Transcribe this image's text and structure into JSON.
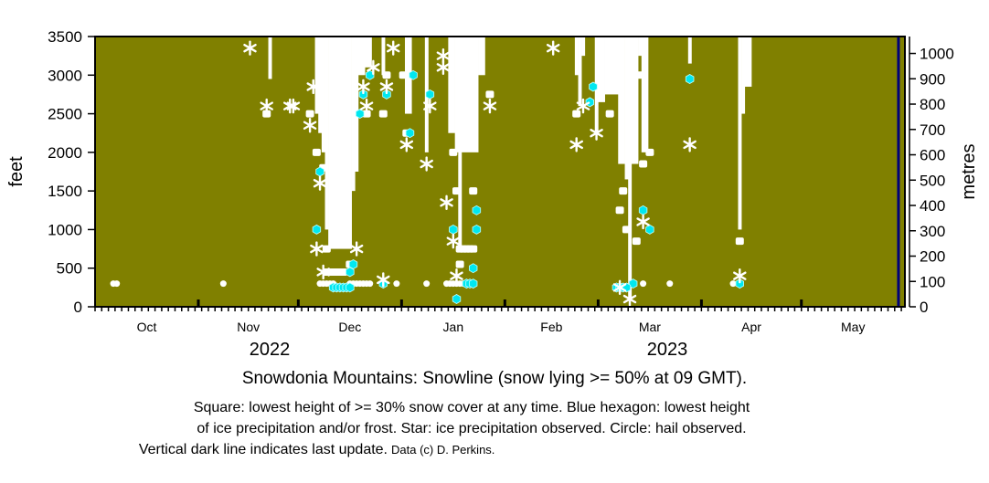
{
  "chart_data": {
    "type": "scatter",
    "title": "Snowdonia Mountains: Snowline (snow lying >= 50% at 09 GMT).",
    "caption_lines": [
      "Square: lowest height of >= 30% snow cover at any time. Blue hexagon: lowest height",
      "of ice precipitation and/or frost. Star: ice precipitation observed. Circle: hail observed.",
      "Vertical dark line indicates last update."
    ],
    "credit": "Data (c) D. Perkins.",
    "ylabel": "feet",
    "y2label": "metres",
    "ylim": [
      0,
      3500
    ],
    "yticks": [
      0,
      500,
      1000,
      1500,
      2000,
      2500,
      3000,
      3500
    ],
    "y2lim": [
      0,
      1066.8
    ],
    "y2ticks": [
      0,
      100,
      200,
      300,
      400,
      500,
      600,
      700,
      800,
      900,
      1000
    ],
    "xlim": [
      "2022-10-01",
      "2023-06-01"
    ],
    "months": [
      {
        "label": "Oct",
        "start": "2022-10-01",
        "days": 31
      },
      {
        "label": "Nov",
        "start": "2022-11-01",
        "days": 30
      },
      {
        "label": "Dec",
        "start": "2022-12-01",
        "days": 31
      },
      {
        "label": "Jan",
        "start": "2023-01-01",
        "days": 31
      },
      {
        "label": "Feb",
        "start": "2023-02-01",
        "days": 28
      },
      {
        "label": "Mar",
        "start": "2023-03-01",
        "days": 31
      },
      {
        "label": "Apr",
        "start": "2023-04-01",
        "days": 30
      },
      {
        "label": "May",
        "start": "2023-05-01",
        "days": 31
      }
    ],
    "years": [
      "2022",
      "2023"
    ],
    "last_update": "2023-05-30",
    "colors": {
      "background": "#808000",
      "snow": "#ffffff",
      "hexagon": "#00e8f0",
      "last_update": "#00007a"
    },
    "snowline_feet": [
      {
        "from": "2022-11-22",
        "to": "2022-11-22",
        "ft": 2950
      },
      {
        "from": "2022-12-06",
        "to": "2022-12-06",
        "ft": 2500
      },
      {
        "from": "2022-12-07",
        "to": "2022-12-07",
        "ft": 2250
      },
      {
        "from": "2022-12-08",
        "to": "2022-12-08",
        "ft": 2000
      },
      {
        "from": "2022-12-09",
        "to": "2022-12-09",
        "ft": 1000
      },
      {
        "from": "2022-12-10",
        "to": "2022-12-16",
        "ft": 750
      },
      {
        "from": "2022-12-17",
        "to": "2022-12-17",
        "ft": 1500
      },
      {
        "from": "2022-12-18",
        "to": "2022-12-18",
        "ft": 1750
      },
      {
        "from": "2022-12-19",
        "to": "2022-12-20",
        "ft": 3000
      },
      {
        "from": "2022-12-21",
        "to": "2022-12-22",
        "ft": 3100
      },
      {
        "from": "2022-12-26",
        "to": "2022-12-26",
        "ft": 3000
      },
      {
        "from": "2023-01-02",
        "to": "2023-01-03",
        "ft": 2500
      },
      {
        "from": "2023-01-08",
        "to": "2023-01-08",
        "ft": 2000
      },
      {
        "from": "2023-01-15",
        "to": "2023-01-16",
        "ft": 2250
      },
      {
        "from": "2023-01-17",
        "to": "2023-01-17",
        "ft": 2000
      },
      {
        "from": "2023-01-18",
        "to": "2023-01-18",
        "ft": 750
      },
      {
        "from": "2023-01-19",
        "to": "2023-01-23",
        "ft": 2000
      },
      {
        "from": "2023-01-24",
        "to": "2023-01-25",
        "ft": 3000
      },
      {
        "from": "2023-02-22",
        "to": "2023-02-22",
        "ft": 3000
      },
      {
        "from": "2023-02-23",
        "to": "2023-02-23",
        "ft": 2600
      },
      {
        "from": "2023-02-24",
        "to": "2023-02-24",
        "ft": 3250
      },
      {
        "from": "2023-02-28",
        "to": "2023-02-28",
        "ft": 2250
      },
      {
        "from": "2023-03-01",
        "to": "2023-03-02",
        "ft": 2650
      },
      {
        "from": "2023-03-03",
        "to": "2023-03-06",
        "ft": 2750
      },
      {
        "from": "2023-03-07",
        "to": "2023-03-08",
        "ft": 1850
      },
      {
        "from": "2023-03-09",
        "to": "2023-03-09",
        "ft": 1650
      },
      {
        "from": "2023-03-10",
        "to": "2023-03-10",
        "ft": 100
      },
      {
        "from": "2023-03-11",
        "to": "2023-03-12",
        "ft": 1850
      },
      {
        "from": "2023-03-13",
        "to": "2023-03-13",
        "ft": 3250
      },
      {
        "from": "2023-03-14",
        "to": "2023-03-15",
        "ft": 2000
      },
      {
        "from": "2023-03-28",
        "to": "2023-03-28",
        "ft": 3150
      },
      {
        "from": "2023-04-12",
        "to": "2023-04-12",
        "ft": 1000
      },
      {
        "from": "2023-04-13",
        "to": "2023-04-13",
        "ft": 2500
      },
      {
        "from": "2023-04-14",
        "to": "2023-04-15",
        "ft": 2850
      }
    ],
    "squares": [
      [
        "2022-11-21",
        2500
      ],
      [
        "2022-12-04",
        2500
      ],
      [
        "2022-12-06",
        2000
      ],
      [
        "2022-12-08",
        1800
      ],
      [
        "2022-12-09",
        750
      ],
      [
        "2022-12-09",
        450
      ],
      [
        "2022-12-10",
        450
      ],
      [
        "2022-12-11",
        450
      ],
      [
        "2022-12-12",
        450
      ],
      [
        "2022-12-13",
        450
      ],
      [
        "2022-12-14",
        450
      ],
      [
        "2022-12-16",
        550
      ],
      [
        "2022-12-21",
        2500
      ],
      [
        "2022-12-26",
        2500
      ],
      [
        "2022-12-27",
        3000
      ],
      [
        "2023-01-01",
        3000
      ],
      [
        "2023-01-02",
        2250
      ],
      [
        "2023-01-27",
        2750
      ],
      [
        "2023-01-16",
        2000
      ],
      [
        "2023-01-17",
        1500
      ],
      [
        "2023-01-22",
        1500
      ],
      [
        "2023-01-18",
        750
      ],
      [
        "2023-01-19",
        750
      ],
      [
        "2023-01-20",
        750
      ],
      [
        "2023-01-21",
        750
      ],
      [
        "2023-01-22",
        750
      ],
      [
        "2023-01-18",
        550
      ],
      [
        "2023-02-22",
        2500
      ],
      [
        "2023-03-04",
        2500
      ],
      [
        "2023-03-13",
        3000
      ],
      [
        "2023-03-16",
        2000
      ],
      [
        "2023-03-14",
        1850
      ],
      [
        "2023-03-08",
        1500
      ],
      [
        "2023-03-07",
        1250
      ],
      [
        "2023-03-09",
        1000
      ],
      [
        "2023-03-12",
        850
      ],
      [
        "2023-04-12",
        850
      ]
    ],
    "hexagons": [
      [
        "2022-12-07",
        1750
      ],
      [
        "2022-12-06",
        1000
      ],
      [
        "2022-12-17",
        550
      ],
      [
        "2022-12-16",
        450
      ],
      [
        "2022-12-11",
        250
      ],
      [
        "2022-12-12",
        250
      ],
      [
        "2022-12-13",
        250
      ],
      [
        "2022-12-14",
        250
      ],
      [
        "2022-12-15",
        250
      ],
      [
        "2022-12-16",
        250
      ],
      [
        "2022-12-26",
        300
      ],
      [
        "2022-12-22",
        3000
      ],
      [
        "2023-01-04",
        3000
      ],
      [
        "2022-12-20",
        2750
      ],
      [
        "2022-12-19",
        2500
      ],
      [
        "2022-12-27",
        2750
      ],
      [
        "2023-01-03",
        2250
      ],
      [
        "2023-01-09",
        2750
      ],
      [
        "2023-01-23",
        1250
      ],
      [
        "2023-01-16",
        1000
      ],
      [
        "2023-01-23",
        1000
      ],
      [
        "2023-01-22",
        500
      ],
      [
        "2023-01-20",
        300
      ],
      [
        "2023-01-21",
        300
      ],
      [
        "2023-01-22",
        300
      ],
      [
        "2023-01-17",
        100
      ],
      [
        "2023-02-27",
        2850
      ],
      [
        "2023-02-26",
        2650
      ],
      [
        "2023-03-14",
        1250
      ],
      [
        "2023-03-16",
        1000
      ],
      [
        "2023-03-28",
        2950
      ],
      [
        "2023-04-12",
        300
      ],
      [
        "2023-03-11",
        300
      ],
      [
        "2023-03-06",
        250
      ],
      [
        "2023-03-07",
        250
      ],
      [
        "2023-03-08",
        250
      ],
      [
        "2023-03-09",
        250
      ]
    ],
    "stars": [
      [
        "2022-11-16",
        3350
      ],
      [
        "2022-11-21",
        2600
      ],
      [
        "2022-11-28",
        2600
      ],
      [
        "2022-11-29",
        2600
      ],
      [
        "2022-12-05",
        2850
      ],
      [
        "2022-12-04",
        2350
      ],
      [
        "2022-12-07",
        1600
      ],
      [
        "2022-12-06",
        750
      ],
      [
        "2022-12-18",
        750
      ],
      [
        "2022-12-08",
        450
      ],
      [
        "2022-12-26",
        350
      ],
      [
        "2022-12-23",
        3100
      ],
      [
        "2022-12-29",
        3350
      ],
      [
        "2022-12-20",
        2850
      ],
      [
        "2022-12-21",
        2600
      ],
      [
        "2022-12-27",
        2850
      ],
      [
        "2023-01-02",
        2100
      ],
      [
        "2023-01-09",
        2600
      ],
      [
        "2023-01-08",
        1850
      ],
      [
        "2023-01-13",
        3250
      ],
      [
        "2023-01-13",
        3100
      ],
      [
        "2023-01-27",
        2600
      ],
      [
        "2023-01-14",
        1350
      ],
      [
        "2023-01-16",
        850
      ],
      [
        "2023-01-17",
        400
      ],
      [
        "2023-02-15",
        3350
      ],
      [
        "2023-02-24",
        2600
      ],
      [
        "2023-02-28",
        2250
      ],
      [
        "2023-02-22",
        2100
      ],
      [
        "2023-03-14",
        1100
      ],
      [
        "2023-03-28",
        2100
      ],
      [
        "2023-04-12",
        400
      ],
      [
        "2023-03-07",
        250
      ],
      [
        "2023-03-10",
        100
      ]
    ],
    "circles": [
      [
        "2022-10-06",
        300
      ],
      [
        "2022-10-07",
        300
      ],
      [
        "2022-11-08",
        300
      ],
      [
        "2022-12-07",
        300
      ],
      [
        "2022-12-08",
        300
      ],
      [
        "2022-12-09",
        300
      ],
      [
        "2022-12-10",
        300
      ],
      [
        "2022-12-11",
        300
      ],
      [
        "2022-12-16",
        300
      ],
      [
        "2022-12-17",
        300
      ],
      [
        "2022-12-18",
        300
      ],
      [
        "2022-12-19",
        300
      ],
      [
        "2022-12-20",
        300
      ],
      [
        "2022-12-21",
        300
      ],
      [
        "2022-12-22",
        300
      ],
      [
        "2022-12-26",
        300
      ],
      [
        "2022-12-30",
        300
      ],
      [
        "2023-01-08",
        300
      ],
      [
        "2023-01-14",
        300
      ],
      [
        "2023-01-15",
        300
      ],
      [
        "2023-01-16",
        300
      ],
      [
        "2023-01-17",
        300
      ],
      [
        "2023-01-18",
        300
      ],
      [
        "2023-01-19",
        300
      ],
      [
        "2023-03-14",
        300
      ],
      [
        "2023-03-22",
        300
      ],
      [
        "2023-04-10",
        300
      ]
    ]
  }
}
